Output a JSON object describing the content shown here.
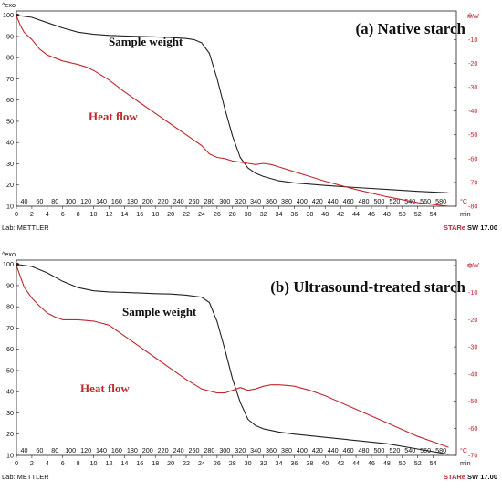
{
  "chart_data": [
    {
      "type": "line",
      "title": "(a) Native starch",
      "y_left_label": "^exo",
      "y_right_label": "mW",
      "x_temp_unit": "°C",
      "x_time_unit": "min",
      "footer_left": "Lab: METTLER",
      "footer_right_brand": "STAR",
      "footer_right_rest": "SW 17.00",
      "y_left_ticks": [
        100,
        90,
        80,
        70,
        60,
        50,
        40,
        30,
        20,
        10
      ],
      "y_right_ticks": [
        0,
        -10,
        -20,
        -30,
        -40,
        -50,
        -60,
        -70,
        -80
      ],
      "x_temp_ticks": [
        40,
        60,
        80,
        100,
        120,
        140,
        160,
        180,
        200,
        220,
        240,
        260,
        280,
        300,
        320,
        340,
        360,
        380,
        400,
        420,
        440,
        460,
        480,
        500,
        520,
        540,
        560,
        580
      ],
      "x_time_ticks": [
        0,
        2,
        4,
        6,
        8,
        10,
        12,
        14,
        16,
        18,
        20,
        22,
        24,
        26,
        28,
        30,
        32,
        34,
        36,
        38,
        40,
        42,
        44,
        46,
        48,
        50,
        52,
        54
      ],
      "ylim_left": [
        10,
        102
      ],
      "ylim_right": [
        -80,
        2
      ],
      "xlim_time": [
        0,
        57
      ],
      "grid": false,
      "series": [
        {
          "name": "Sample weight",
          "color": "#222222",
          "axis": "left",
          "x_time": [
            0,
            2,
            4,
            6,
            8,
            10,
            12,
            14,
            16,
            18,
            20,
            22,
            23,
            24,
            25,
            26,
            27,
            28,
            29,
            30,
            31,
            32,
            34,
            36,
            40,
            44,
            48,
            52,
            56
          ],
          "y": [
            100,
            99,
            96.5,
            94,
            92,
            91,
            90.5,
            90.2,
            90,
            89.8,
            89.5,
            89,
            88.5,
            87,
            82,
            70,
            56,
            43,
            33,
            28,
            25.5,
            24,
            22,
            21,
            19.8,
            18.8,
            17.9,
            17,
            16.3
          ]
        },
        {
          "name": "Heat flow",
          "color": "#c0282f",
          "axis": "right",
          "x_time": [
            0,
            0.5,
            1,
            2,
            3,
            4,
            6,
            8,
            9,
            10,
            12,
            14,
            16,
            18,
            20,
            22,
            24,
            25,
            26,
            27,
            28,
            29,
            30,
            31,
            32,
            33,
            34,
            36,
            38,
            40,
            44,
            48,
            52,
            56
          ],
          "y": [
            0,
            -4,
            -7,
            -10,
            -14,
            -16.5,
            -19,
            -20.5,
            -21.5,
            -23,
            -27,
            -32,
            -36.5,
            -41,
            -45.5,
            -50,
            -54.5,
            -58,
            -59.5,
            -60,
            -61,
            -61.5,
            -62,
            -62.5,
            -62,
            -62.5,
            -63.5,
            -65.5,
            -67.5,
            -69.5,
            -73,
            -76,
            -78.5,
            -80
          ]
        }
      ]
    },
    {
      "type": "line",
      "title": "(b) Ultrasound-treated starch",
      "y_left_label": "^exo",
      "y_right_label": "mW",
      "x_temp_unit": "°C",
      "x_time_unit": "min",
      "footer_left": "Lab: METTLER",
      "footer_right_brand": "STAR",
      "footer_right_rest": "SW 17.00",
      "y_left_ticks": [
        100,
        90,
        80,
        70,
        60,
        50,
        40,
        30,
        20,
        10
      ],
      "y_right_ticks": [
        0,
        -10,
        -20,
        -30,
        -40,
        -50,
        -60,
        -70
      ],
      "x_temp_ticks": [
        40,
        60,
        80,
        100,
        120,
        140,
        160,
        180,
        200,
        220,
        240,
        260,
        280,
        300,
        320,
        340,
        360,
        380,
        400,
        420,
        440,
        460,
        480,
        500,
        520,
        540,
        560,
        580
      ],
      "x_time_ticks": [
        0,
        2,
        4,
        6,
        8,
        10,
        12,
        14,
        16,
        18,
        20,
        22,
        24,
        26,
        28,
        30,
        32,
        34,
        36,
        38,
        40,
        42,
        44,
        46,
        48,
        50,
        52,
        54
      ],
      "ylim_left": [
        10,
        102
      ],
      "ylim_right": [
        -70,
        2
      ],
      "xlim_time": [
        0,
        57
      ],
      "grid": false,
      "series": [
        {
          "name": "Sample weight",
          "color": "#222222",
          "axis": "left",
          "x_time": [
            0,
            2,
            4,
            6,
            8,
            10,
            12,
            14,
            16,
            18,
            20,
            22,
            24,
            25,
            26,
            27,
            28,
            29,
            30,
            31,
            32,
            34,
            36,
            40,
            44,
            48,
            52,
            56
          ],
          "y": [
            100,
            99,
            96,
            92,
            89,
            87.5,
            87,
            86.8,
            86.5,
            86.2,
            86,
            85.5,
            84.5,
            82,
            73,
            60,
            46,
            35,
            27,
            24,
            22.5,
            21,
            20,
            18.5,
            17,
            15.5,
            13,
            10.5
          ]
        },
        {
          "name": "Heat flow",
          "color": "#c0282f",
          "axis": "right",
          "x_time": [
            0,
            0.5,
            1,
            2,
            3,
            4,
            5,
            6,
            8,
            10,
            12,
            14,
            16,
            18,
            20,
            22,
            24,
            26,
            27,
            28,
            29,
            30,
            31,
            32,
            33,
            34,
            35,
            36,
            38,
            40,
            44,
            48,
            52,
            56
          ],
          "y": [
            0,
            -4,
            -8,
            -12,
            -15,
            -17.5,
            -19,
            -20,
            -20,
            -20.5,
            -22,
            -26,
            -30,
            -34,
            -38,
            -42,
            -45.5,
            -47,
            -47,
            -46,
            -45,
            -46,
            -45.5,
            -44.5,
            -44,
            -44,
            -44.2,
            -44.5,
            -46,
            -48,
            -53,
            -58,
            -63,
            -67
          ]
        }
      ]
    }
  ]
}
